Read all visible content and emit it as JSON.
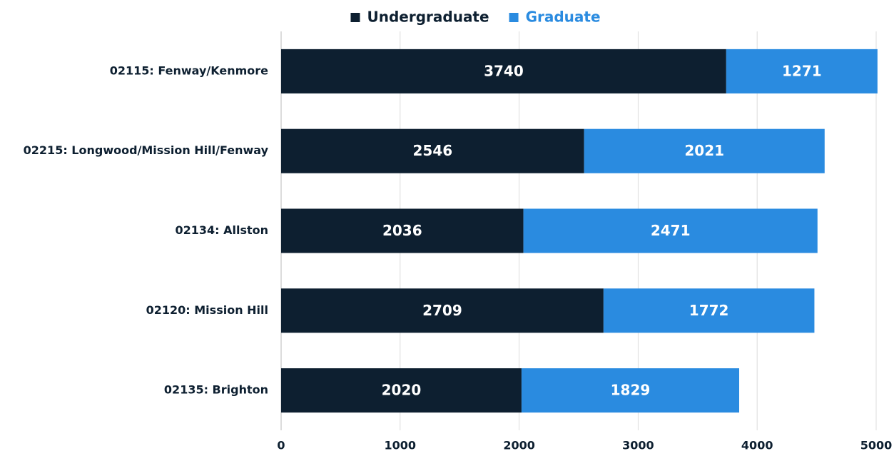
{
  "chart_data": {
    "type": "bar",
    "orientation": "horizontal",
    "stacked": true,
    "legend": "top",
    "categories": [
      "02115: Fenway/Kenmore",
      "02215: Longwood/Mission Hill/Fenway",
      "02134: Allston",
      "02120: Mission Hill",
      "02135: Brighton"
    ],
    "series": [
      {
        "name": "Undergraduate",
        "color": "#0d1f30",
        "values": [
          3740,
          2546,
          2036,
          2709,
          2020
        ]
      },
      {
        "name": "Graduate",
        "color": "#2a8be0",
        "values": [
          1271,
          2021,
          2471,
          1772,
          1829
        ]
      }
    ],
    "xlim": [
      0,
      5000
    ],
    "xticks": [
      0,
      1000,
      2000,
      3000,
      4000,
      5000
    ],
    "grid": true
  }
}
